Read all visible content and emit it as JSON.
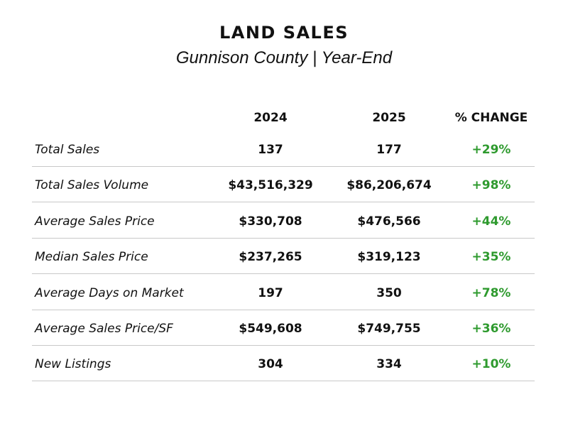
{
  "header": {
    "title": "LAND SALES",
    "subtitle": "Gunnison County | Year-End"
  },
  "table": {
    "columns": [
      "2024",
      "2025",
      "% CHANGE"
    ],
    "rows": [
      [
        "Total Sales",
        "137",
        "177",
        "+29%"
      ],
      [
        "Total Sales Volume",
        "$43,516,329",
        "$86,206,674",
        "+98%"
      ],
      [
        "Average Sales Price",
        "$330,708",
        "$476,566",
        "+44%"
      ],
      [
        "Median Sales Price",
        "$237,265",
        "$319,123",
        "+35%"
      ],
      [
        "Average Days on Market",
        "197",
        "350",
        "+78%"
      ],
      [
        "Average Sales Price/SF",
        "$549,608",
        "$749,755",
        "+36%"
      ],
      [
        "New Listings",
        "304",
        "334",
        "+10%"
      ]
    ]
  }
}
